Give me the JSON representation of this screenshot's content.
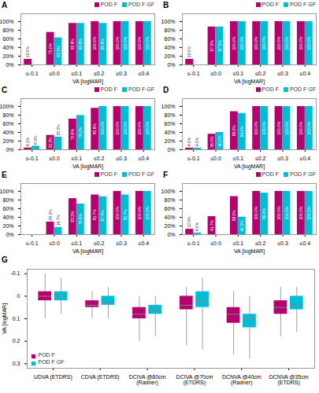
{
  "chart_data": [
    {
      "type": "bar",
      "title": "A",
      "xlabel": "VA [logMAR]",
      "categories": [
        "≤-0.1",
        "≤0.0",
        "≤0.1",
        "≤0.2",
        "≤0.3",
        "≤0.4"
      ],
      "series": [
        {
          "name": "POD F",
          "color": "#b5006e",
          "values": [
            13.0,
            75.0,
            95.8,
            100.0,
            100.0,
            100.0
          ],
          "value_labels": [
            "13.0%",
            "75.0%",
            "95.8%",
            "100.0%",
            "100.0%",
            "100.0%"
          ]
        },
        {
          "name": "POD F GF",
          "color": "#00bcd4",
          "values": [
            0.0,
            62.5,
            95.8,
            95.8,
            100.0,
            100.0
          ],
          "value_labels": [
            null,
            "62.5%",
            "95.8%",
            "95.8%",
            "100.0%",
            "100.0%"
          ]
        }
      ],
      "ylim": [
        0,
        118
      ],
      "yticks": [
        {
          "value": 0,
          "label": "0%"
        },
        {
          "value": 20,
          "label": "20%"
        },
        {
          "value": 40,
          "label": "40%"
        },
        {
          "value": 60,
          "label": "60%"
        },
        {
          "value": 80,
          "label": "80%"
        },
        {
          "value": 100,
          "label": "100%"
        }
      ],
      "grid": false,
      "legend": "top",
      "data_labels": true
    },
    {
      "type": "bar",
      "title": "B",
      "xlabel": "VA [logMAR]",
      "categories": [
        "≤-0.1",
        "≤0.0",
        "≤0.1",
        "≤0.2",
        "≤0.3",
        "≤0.4"
      ],
      "series": [
        {
          "name": "POD F",
          "color": "#b5006e",
          "values": [
            13.0,
            87.5,
            100.0,
            100.0,
            100.0,
            100.0
          ],
          "value_labels": [
            "13.0%",
            "87.5%",
            "100.0%",
            "100.0%",
            "100.0%",
            "100.0%"
          ]
        },
        {
          "name": "POD F GF",
          "color": "#00bcd4",
          "values": [
            0.0,
            87.5,
            100.0,
            100.0,
            100.0,
            100.0
          ],
          "value_labels": [
            null,
            "87.5%",
            "100.0%",
            "100.0%",
            "100.0%",
            "100.0%"
          ]
        }
      ],
      "ylim": [
        0,
        118
      ],
      "yticks": [
        {
          "value": 0,
          "label": "0%"
        },
        {
          "value": 20,
          "label": "20%"
        },
        {
          "value": 40,
          "label": "40%"
        },
        {
          "value": 60,
          "label": "60%"
        },
        {
          "value": 80,
          "label": "80%"
        },
        {
          "value": 100,
          "label": "100%"
        }
      ],
      "grid": false,
      "legend": "top",
      "data_labels": true
    },
    {
      "type": "bar",
      "title": "C",
      "xlabel": "VA [logMAR]",
      "categories": [
        "≤-0.1",
        "≤0.0",
        "≤0.1",
        "≤0.2",
        "≤0.3",
        "≤0.4"
      ],
      "series": [
        {
          "name": "POD F",
          "color": "#b5006e",
          "values": [
            4.2,
            33.3,
            70.8,
            95.8,
            100.0,
            100.0
          ],
          "value_labels": [
            "4.2%",
            "33.3%",
            "70.8%",
            "95.8%",
            "100.0%",
            "100.0%"
          ]
        },
        {
          "name": "POD F GF",
          "color": "#00bcd4",
          "values": [
            8.3,
            29.2,
            79.2,
            100.0,
            100.0,
            100.0
          ],
          "value_labels": [
            "8.3%",
            "29.2%",
            "79.2%",
            "100.0%",
            "100.0%",
            "100.0%"
          ]
        }
      ],
      "ylim": [
        0,
        118
      ],
      "yticks": [
        {
          "value": 0,
          "label": "0%"
        },
        {
          "value": 20,
          "label": "20%"
        },
        {
          "value": 40,
          "label": "40%"
        },
        {
          "value": 60,
          "label": "60%"
        },
        {
          "value": 80,
          "label": "80%"
        },
        {
          "value": 100,
          "label": "100%"
        }
      ],
      "grid": false,
      "legend": "top",
      "data_labels": true
    },
    {
      "type": "bar",
      "title": "D",
      "xlabel": "VA [logMAR]",
      "categories": [
        "≤-0.1",
        "≤0.0",
        "≤0.1",
        "≤0.2",
        "≤0.3",
        "≤0.4"
      ],
      "series": [
        {
          "name": "POD F",
          "color": "#b5006e",
          "values": [
            4.0,
            36.0,
            88.0,
            100.0,
            100.0,
            100.0
          ],
          "value_labels": [
            "4.0%",
            "36.0%",
            "88.0%",
            "100.0%",
            "100.0%",
            "100.0%"
          ]
        },
        {
          "name": "POD F GF",
          "color": "#00bcd4",
          "values": [
            4.0,
            40.0,
            84.0,
            100.0,
            100.0,
            100.0
          ],
          "value_labels": [
            "4.0%",
            "40.0%",
            "84.0%",
            "100.0%",
            "100.0%",
            "100.0%"
          ]
        }
      ],
      "ylim": [
        0,
        118
      ],
      "yticks": [
        {
          "value": 0,
          "label": "0%"
        },
        {
          "value": 20,
          "label": "20%"
        },
        {
          "value": 40,
          "label": "40%"
        },
        {
          "value": 60,
          "label": "60%"
        },
        {
          "value": 80,
          "label": "80%"
        },
        {
          "value": 100,
          "label": "100%"
        }
      ],
      "grid": false,
      "legend": "top",
      "data_labels": true
    },
    {
      "type": "bar",
      "title": "E",
      "xlabel": "VA [logMAR]",
      "categories": [
        "≤-0.1",
        "≤0.0",
        "≤0.1",
        "≤0.2",
        "≤0.3",
        "≤0.4"
      ],
      "series": [
        {
          "name": "POD F",
          "color": "#b5006e",
          "values": [
            0.0,
            29.2,
            83.3,
            91.7,
            100.0,
            100.0
          ],
          "value_labels": [
            null,
            "29.2%",
            "83.3%",
            "91.7%",
            "100.0%",
            "100.0%"
          ]
        },
        {
          "name": "POD F GF",
          "color": "#00bcd4",
          "values": [
            0.0,
            16.7,
            70.8,
            87.5,
            91.7,
            100.0
          ],
          "value_labels": [
            null,
            "16.7%",
            "70.8%",
            "87.5%",
            "91.7%",
            "100.0%"
          ]
        }
      ],
      "ylim": [
        0,
        118
      ],
      "yticks": [
        {
          "value": 0,
          "label": "0%"
        },
        {
          "value": 20,
          "label": "20%"
        },
        {
          "value": 40,
          "label": "40%"
        },
        {
          "value": 60,
          "label": "60%"
        },
        {
          "value": 80,
          "label": "80%"
        },
        {
          "value": 100,
          "label": "100%"
        }
      ],
      "grid": false,
      "legend": "top",
      "data_labels": true
    },
    {
      "type": "bar",
      "title": "F",
      "xlabel": "VA [logMAR]",
      "categories": [
        "≤-0.1",
        "≤0.0",
        "≤0.1",
        "≤0.2",
        "≤0.3",
        "≤0.4"
      ],
      "series": [
        {
          "name": "POD F",
          "color": "#b5006e",
          "values": [
            12.5,
            41.7,
            88.0,
            100.0,
            100.0,
            100.0
          ],
          "value_labels": [
            "12.5%",
            "41.7%",
            "88.0%",
            "100.0%",
            "100.0%",
            "100.0%"
          ]
        },
        {
          "name": "POD F GF",
          "color": "#00bcd4",
          "values": [
            4.0,
            0.0,
            40.5,
            96.0,
            100.0,
            100.0
          ],
          "value_labels": [
            "4.0%",
            null,
            "40.5%",
            "96.0%",
            "100.0%",
            "100.0%"
          ]
        }
      ],
      "ylim": [
        0,
        118
      ],
      "yticks": [
        {
          "value": 0,
          "label": "0%"
        },
        {
          "value": 20,
          "label": "20%"
        },
        {
          "value": 40,
          "label": "40%"
        },
        {
          "value": 60,
          "label": "60%"
        },
        {
          "value": 80,
          "label": "80%"
        },
        {
          "value": 100,
          "label": "100%"
        }
      ],
      "grid": false,
      "legend": "top",
      "data_labels": true
    },
    {
      "type": "box",
      "title": "G",
      "ylabel": "VA [logMAR]",
      "categories": [
        "UDVA (ETDRS)",
        "CDVA (ETDRS)",
        "DCIVA @80cm\n(Radner)",
        "DCIVA @70cm\n(ETDRS)",
        "DCNVA @40cm\n(Radner)",
        "DCNVA @35cm\n(ETDRS)"
      ],
      "series": [
        {
          "name": "POD F",
          "color": "#b5006e",
          "mean": [
            0.0,
            0.04,
            0.08,
            0.04,
            0.08,
            0.05
          ],
          "q1": [
            -0.02,
            0.02,
            0.05,
            0.0,
            0.05,
            0.02
          ],
          "q3": [
            0.02,
            0.05,
            0.1,
            0.06,
            0.12,
            0.08
          ],
          "whislo": [
            -0.1,
            -0.02,
            0.0,
            -0.04,
            -0.02,
            -0.04
          ],
          "whishi": [
            0.1,
            0.1,
            0.2,
            0.22,
            0.26,
            0.18
          ]
        },
        {
          "name": "POD F GF",
          "color": "#00bcd4",
          "mean": [
            0.0,
            0.03,
            0.06,
            0.02,
            0.1,
            0.04
          ],
          "q1": [
            -0.02,
            0.0,
            0.04,
            -0.02,
            0.08,
            0.0
          ],
          "q3": [
            0.02,
            0.04,
            0.08,
            0.05,
            0.14,
            0.06
          ],
          "whislo": [
            -0.08,
            -0.04,
            0.0,
            -0.08,
            0.0,
            -0.04
          ],
          "whishi": [
            0.08,
            0.1,
            0.18,
            0.24,
            0.28,
            0.16
          ]
        }
      ],
      "ylim": [
        0.32,
        -0.12
      ],
      "yticks": [
        -0.1,
        0,
        0.1,
        0.2,
        0.3
      ],
      "grid": false,
      "legend": "lower left"
    }
  ]
}
